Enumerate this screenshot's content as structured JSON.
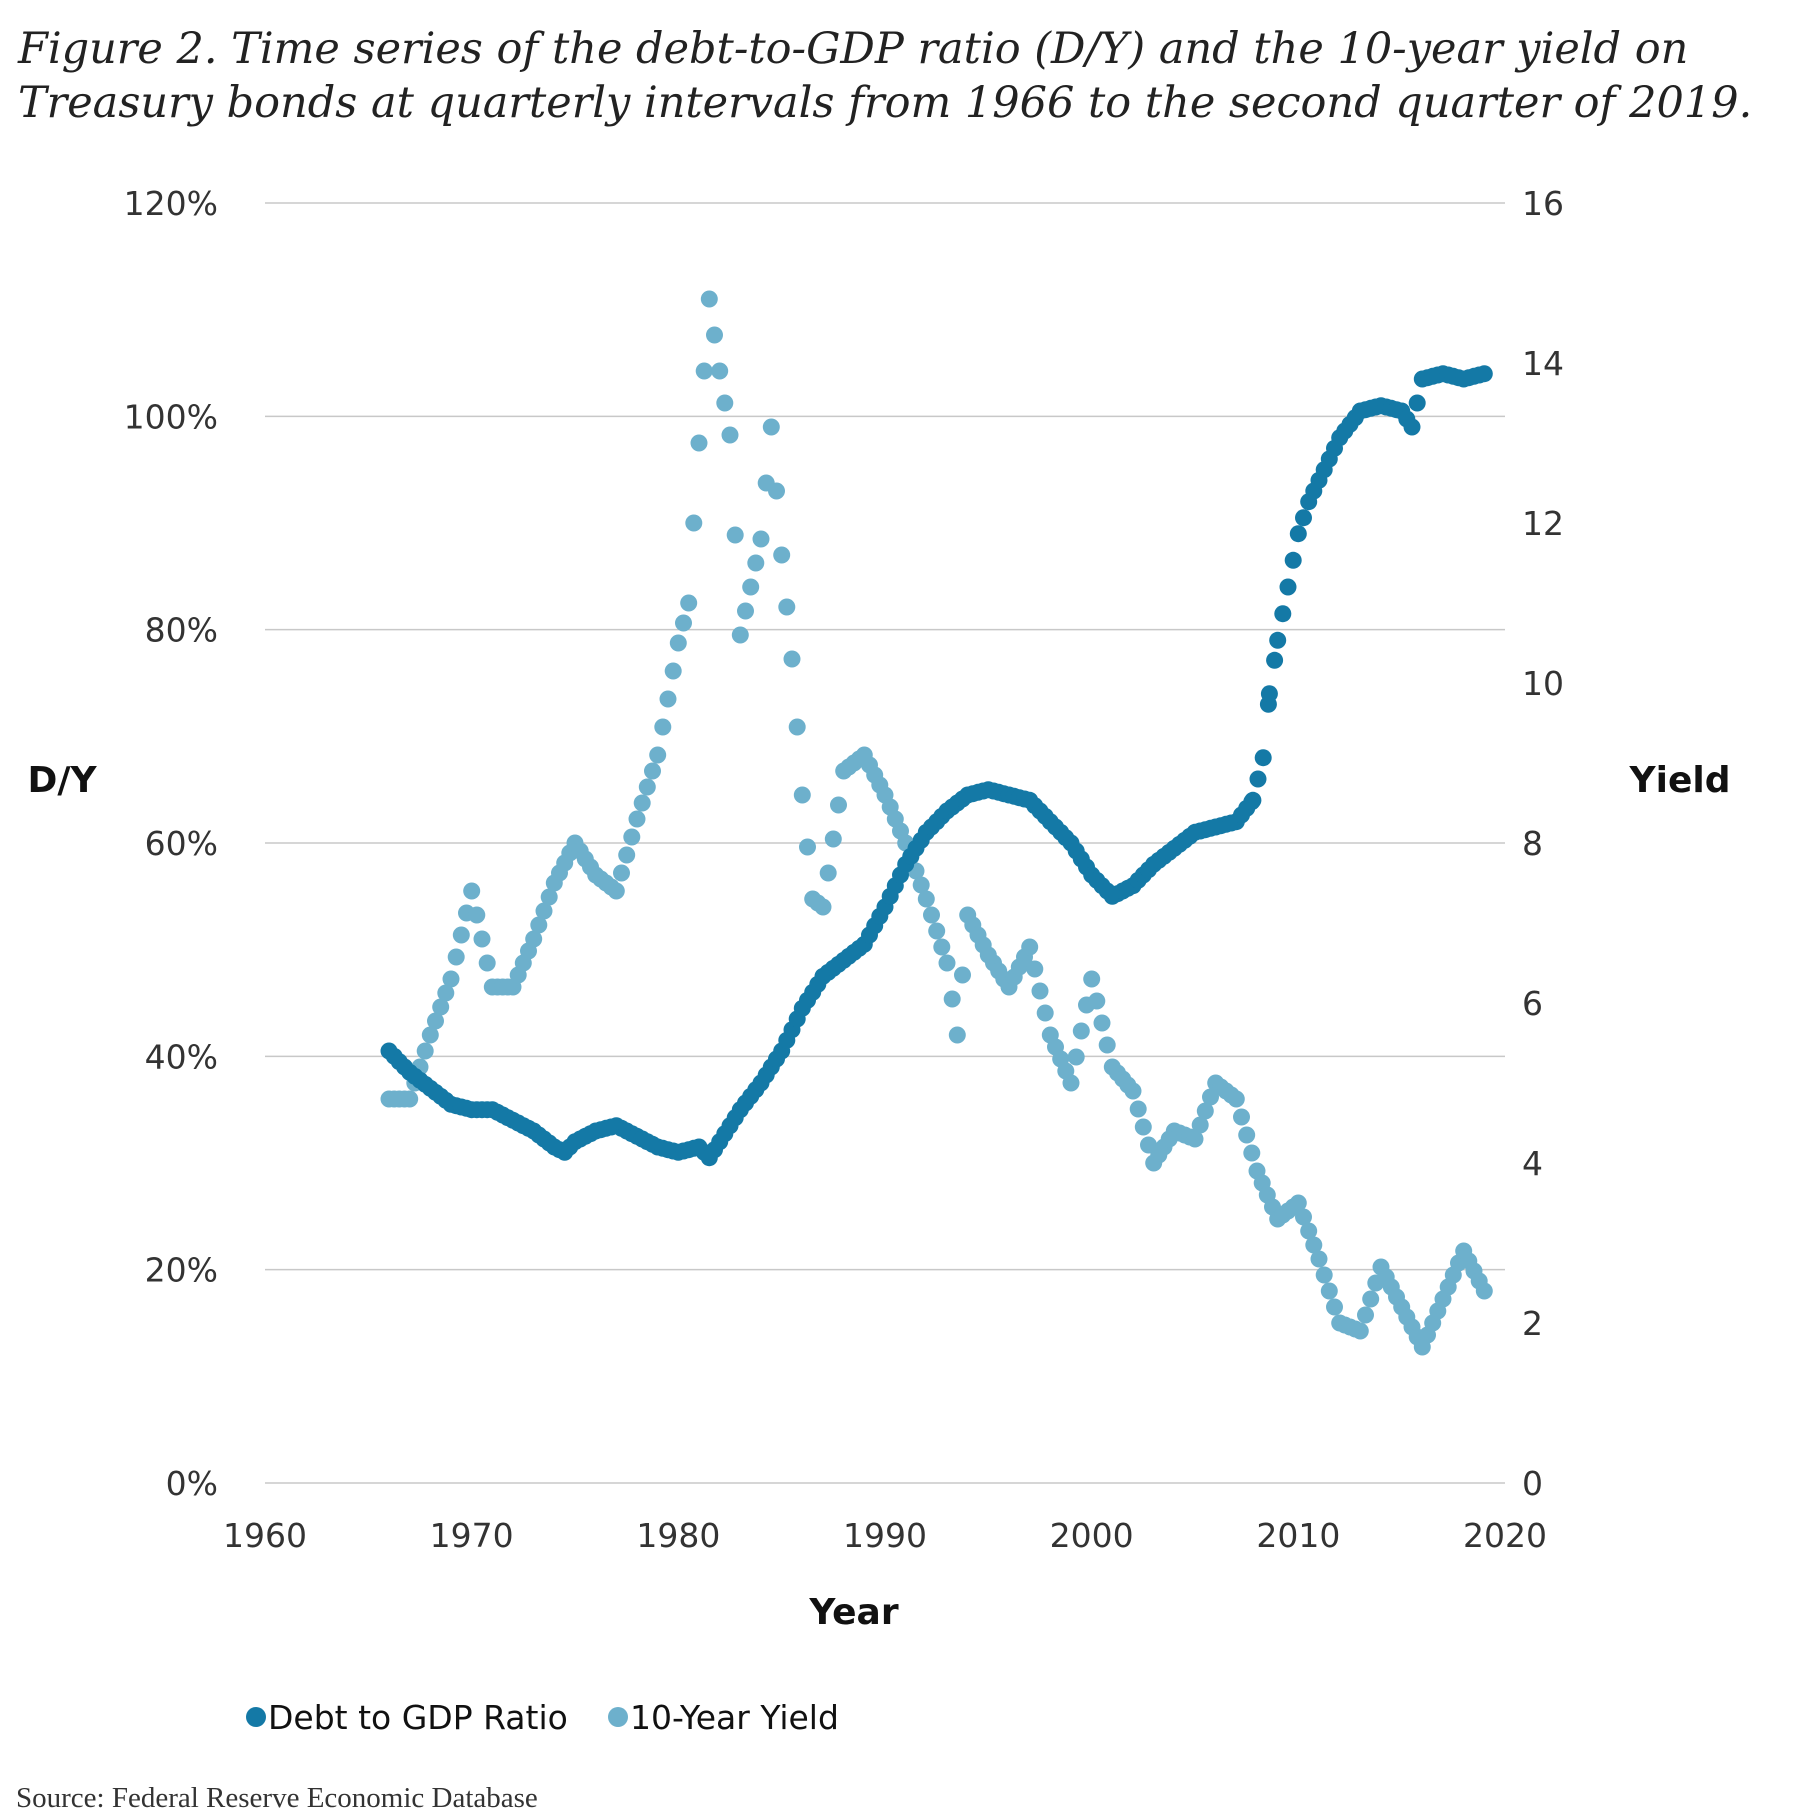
{
  "caption": "Figure 2. Time series of the debt-to-GDP ratio (D/Y) and the 10-year yield on Treasury bonds at quarterly intervals from 1966 to the second quarter of 2019.",
  "source": "Source: Federal Reserve Economic Database",
  "colors": {
    "debt": "#1479a6",
    "yield": "#6db0cc",
    "grid": "#c8c8c8"
  },
  "chart_data": {
    "type": "scatter",
    "title": "",
    "xlabel": "Year",
    "ylabel_left": "D/Y",
    "ylabel_right": "Yield",
    "xlim": [
      1960,
      2020
    ],
    "ylim_left": [
      0,
      120
    ],
    "ylim_right": [
      0,
      16
    ],
    "x_ticks": [
      "1960",
      "1970",
      "1980",
      "1990",
      "2000",
      "2010",
      "2020"
    ],
    "y_left_ticks": [
      "0%",
      "20%",
      "40%",
      "60%",
      "80%",
      "100%",
      "120%"
    ],
    "y_right_ticks": [
      "0",
      "2",
      "4",
      "6",
      "8",
      "10",
      "12",
      "14",
      "16"
    ],
    "legend": [
      "Debt to GDP Ratio",
      "10-Year Yield"
    ],
    "legend_position": "bottom",
    "series": [
      {
        "name": "Debt to GDP Ratio",
        "axis": "left",
        "points": [
          [
            1966,
            40.5
          ],
          [
            1967,
            38.5
          ],
          [
            1968,
            37
          ],
          [
            1969,
            35.5
          ],
          [
            1970,
            35
          ],
          [
            1971,
            35
          ],
          [
            1972,
            34
          ],
          [
            1973,
            33
          ],
          [
            1974,
            31.5
          ],
          [
            1974.5,
            31
          ],
          [
            1975,
            32
          ],
          [
            1976,
            33
          ],
          [
            1977,
            33.5
          ],
          [
            1978,
            32.5
          ],
          [
            1979,
            31.5
          ],
          [
            1980,
            31
          ],
          [
            1981,
            31.5
          ],
          [
            1981.5,
            30.5
          ],
          [
            1982,
            32
          ],
          [
            1983,
            35
          ],
          [
            1984,
            37.5
          ],
          [
            1985,
            40.5
          ],
          [
            1986,
            44.5
          ],
          [
            1987,
            47.5
          ],
          [
            1988,
            49
          ],
          [
            1989,
            50.5
          ],
          [
            1990,
            54
          ],
          [
            1991,
            58
          ],
          [
            1992,
            61
          ],
          [
            1993,
            63
          ],
          [
            1994,
            64.5
          ],
          [
            1995,
            65
          ],
          [
            1996,
            64.5
          ],
          [
            1997,
            64
          ],
          [
            1998,
            62
          ],
          [
            1999,
            60
          ],
          [
            2000,
            57
          ],
          [
            2001,
            55
          ],
          [
            2002,
            56
          ],
          [
            2003,
            58
          ],
          [
            2004,
            59.5
          ],
          [
            2005,
            61
          ],
          [
            2006,
            61.5
          ],
          [
            2007,
            62
          ],
          [
            2007.8,
            64
          ],
          [
            2008.3,
            68
          ],
          [
            2008.6,
            74
          ],
          [
            2009,
            79
          ],
          [
            2009.5,
            84
          ],
          [
            2010,
            89
          ],
          [
            2010.5,
            92
          ],
          [
            2011,
            94
          ],
          [
            2012,
            98
          ],
          [
            2013,
            100.5
          ],
          [
            2014,
            101
          ],
          [
            2015,
            100.5
          ],
          [
            2015.5,
            99
          ],
          [
            2016,
            103.5
          ],
          [
            2017,
            104
          ],
          [
            2018,
            103.5
          ],
          [
            2019,
            104
          ]
        ]
      },
      {
        "name": "10-Year Yield",
        "axis": "right",
        "points": [
          [
            1966,
            4.8
          ],
          [
            1967,
            4.8
          ],
          [
            1968,
            5.6
          ],
          [
            1969,
            6.3
          ],
          [
            1970,
            7.4
          ],
          [
            1971,
            6.2
          ],
          [
            1972,
            6.2
          ],
          [
            1973,
            6.8
          ],
          [
            1974,
            7.5
          ],
          [
            1975,
            8.0
          ],
          [
            1976,
            7.6
          ],
          [
            1977,
            7.4
          ],
          [
            1978,
            8.3
          ],
          [
            1979,
            9.1
          ],
          [
            1980,
            10.5
          ],
          [
            1980.5,
            11.0
          ],
          [
            1981,
            13.0
          ],
          [
            1981.5,
            14.8
          ],
          [
            1982,
            13.9
          ],
          [
            1982.5,
            13.1
          ],
          [
            1983,
            10.6
          ],
          [
            1984,
            11.8
          ],
          [
            1984.5,
            13.2
          ],
          [
            1985,
            11.6
          ],
          [
            1985.5,
            10.3
          ],
          [
            1986,
            8.6
          ],
          [
            1986.5,
            7.3
          ],
          [
            1987,
            7.2
          ],
          [
            1988,
            8.9
          ],
          [
            1989,
            9.1
          ],
          [
            1990,
            8.6
          ],
          [
            1991,
            8.0
          ],
          [
            1992,
            7.3
          ],
          [
            1993,
            6.5
          ],
          [
            1993.5,
            5.6
          ],
          [
            1994,
            7.1
          ],
          [
            1995,
            6.6
          ],
          [
            1996,
            6.2
          ],
          [
            1997,
            6.7
          ],
          [
            1998,
            5.6
          ],
          [
            1999,
            5.0
          ],
          [
            2000,
            6.3
          ],
          [
            2001,
            5.2
          ],
          [
            2002,
            4.9
          ],
          [
            2003,
            4.0
          ],
          [
            2004,
            4.4
          ],
          [
            2005,
            4.3
          ],
          [
            2006,
            5.0
          ],
          [
            2007,
            4.8
          ],
          [
            2008,
            3.9
          ],
          [
            2009,
            3.3
          ],
          [
            2010,
            3.5
          ],
          [
            2011,
            2.8
          ],
          [
            2012,
            2.0
          ],
          [
            2013,
            1.9
          ],
          [
            2014,
            2.7
          ],
          [
            2015,
            2.2
          ],
          [
            2016,
            1.7
          ],
          [
            2017,
            2.3
          ],
          [
            2018,
            2.9
          ],
          [
            2019,
            2.4
          ]
        ]
      }
    ]
  }
}
